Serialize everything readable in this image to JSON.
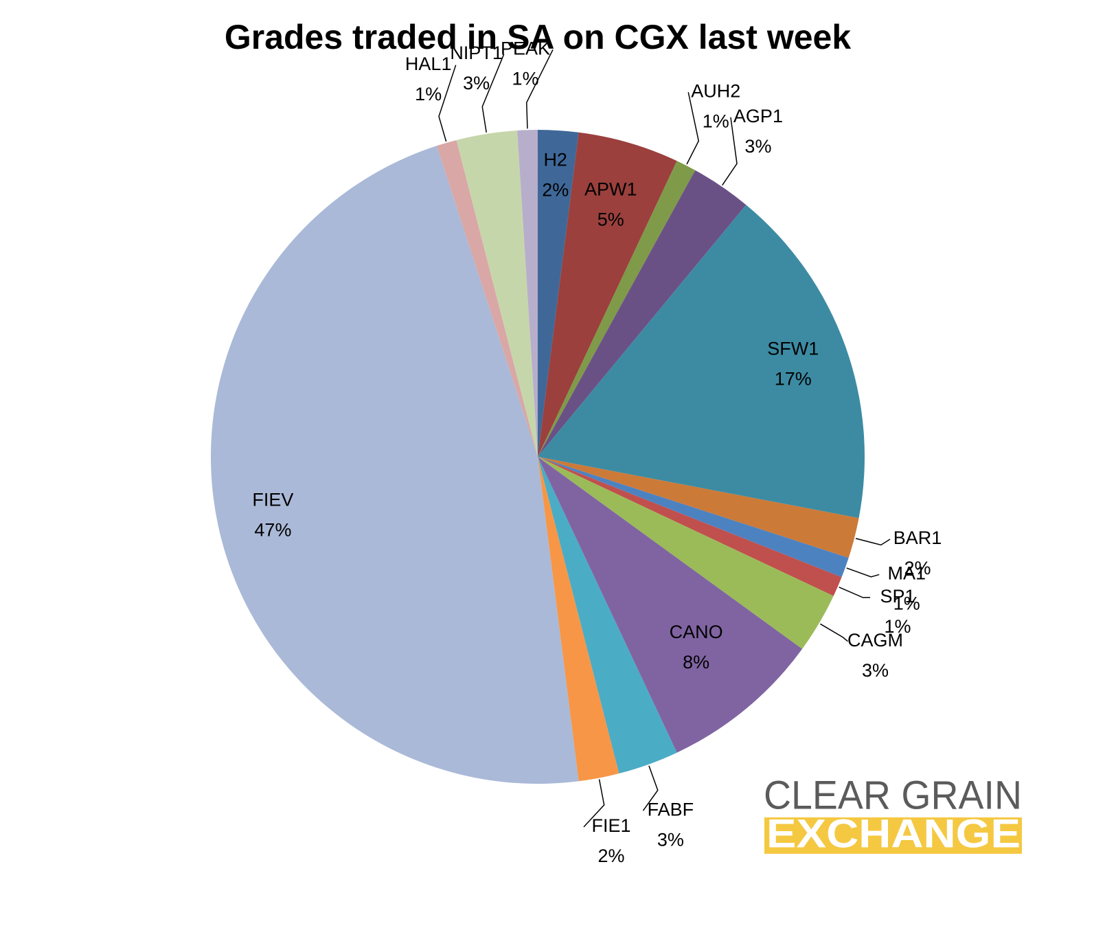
{
  "chart_data": {
    "type": "pie",
    "title": "Grades traded in SA on CGX last week",
    "categories": [
      "H2",
      "APW1",
      "AUH2",
      "AGP1",
      "SFW1",
      "BAR1",
      "MA1",
      "SP1",
      "CAGM",
      "CANO",
      "FABF",
      "FIE1",
      "FIEV",
      "HAL1",
      "NIPT1",
      "PEAK"
    ],
    "values": [
      2,
      5,
      1,
      3,
      17,
      2,
      1,
      1,
      3,
      8,
      3,
      2,
      47,
      1,
      3,
      1
    ],
    "value_labels": [
      "2%",
      "5%",
      "1%",
      "3%",
      "17%",
      "2%",
      "1%",
      "1%",
      "3%",
      "8%",
      "3%",
      "2%",
      "47%",
      "1%",
      "3%",
      "1%"
    ],
    "colors": [
      "#3f6899",
      "#9b403d",
      "#7f9a48",
      "#6a5185",
      "#3c8ba3",
      "#cc7a38",
      "#4d82c1",
      "#c0504d",
      "#9bbb59",
      "#8064a2",
      "#4bacc6",
      "#f79646",
      "#aab9d7",
      "#d9a7a6",
      "#c6d6ab",
      "#b7aecb"
    ]
  },
  "logo": {
    "line1": "CLEAR GRAIN",
    "line2": "EXCHANGE"
  }
}
